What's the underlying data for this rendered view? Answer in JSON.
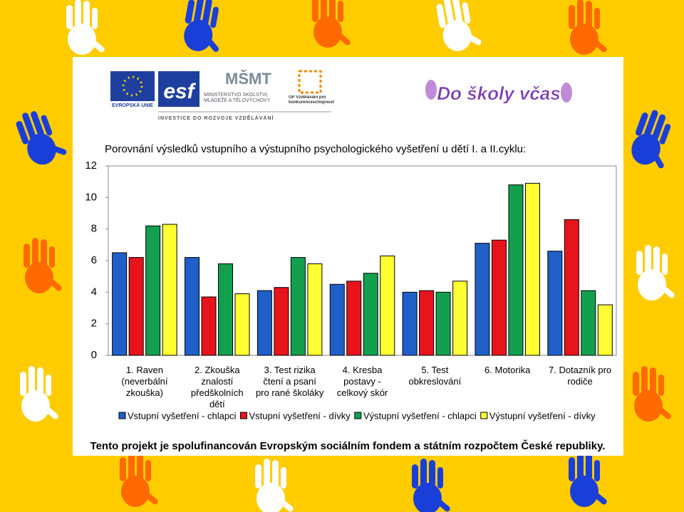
{
  "header": {
    "eu_label": "EVROPSKÁ UNIE",
    "esf_label": "esf",
    "msmt_label": "MINISTERSTVO ŠKOLSTVÍ, MLÁDEŽE A TĚLOVÝCHOVY",
    "investice_label": "INVESTICE DO ROZVOJE VZDĚLÁVÁNÍ",
    "op_label": "OP Vzdělávání pro konkurenceschopnost",
    "project_logo": "Do školy včas"
  },
  "chart_data": {
    "type": "bar",
    "title": "Porovnání výsledků vstupního a výstupního psychologického vyšetření u dětí I. a II.cyklu:",
    "categories": [
      "1. Raven (neverbální zkouška)",
      "2. Zkouška znalostí předškolních dětí",
      "3. Test rizika čtení a psaní pro rané školáky",
      "4. Kresba postavy - celkový skór",
      "5. Test obkreslování",
      "6. Motorika",
      "7. Dotazník pro rodiče"
    ],
    "series": [
      {
        "name": "Vstupní vyšetření - chlapci",
        "color": "#1f5fc8",
        "values": [
          6.5,
          6.2,
          4.1,
          4.5,
          4.0,
          7.1,
          6.6
        ]
      },
      {
        "name": "Vstupní vyšetření - dívky",
        "color": "#e8141c",
        "values": [
          6.2,
          3.7,
          4.3,
          4.7,
          4.1,
          7.3,
          8.6
        ]
      },
      {
        "name": "Výstupní vyšetření - chlapci",
        "color": "#12a04e",
        "values": [
          8.2,
          5.8,
          6.2,
          5.2,
          4.0,
          10.8,
          4.1
        ]
      },
      {
        "name": "Výstupní vyšetření - dívky",
        "color": "#ffff33",
        "values": [
          8.3,
          3.9,
          5.8,
          6.3,
          4.7,
          10.9,
          3.2
        ]
      }
    ],
    "ylim": [
      0,
      12
    ],
    "yticks": [
      0,
      2,
      4,
      6,
      8,
      10,
      12
    ],
    "grid": false
  },
  "footer": "Tento projekt je spolufinancován Evropským sociálním fondem a státním rozpočtem České republiky."
}
